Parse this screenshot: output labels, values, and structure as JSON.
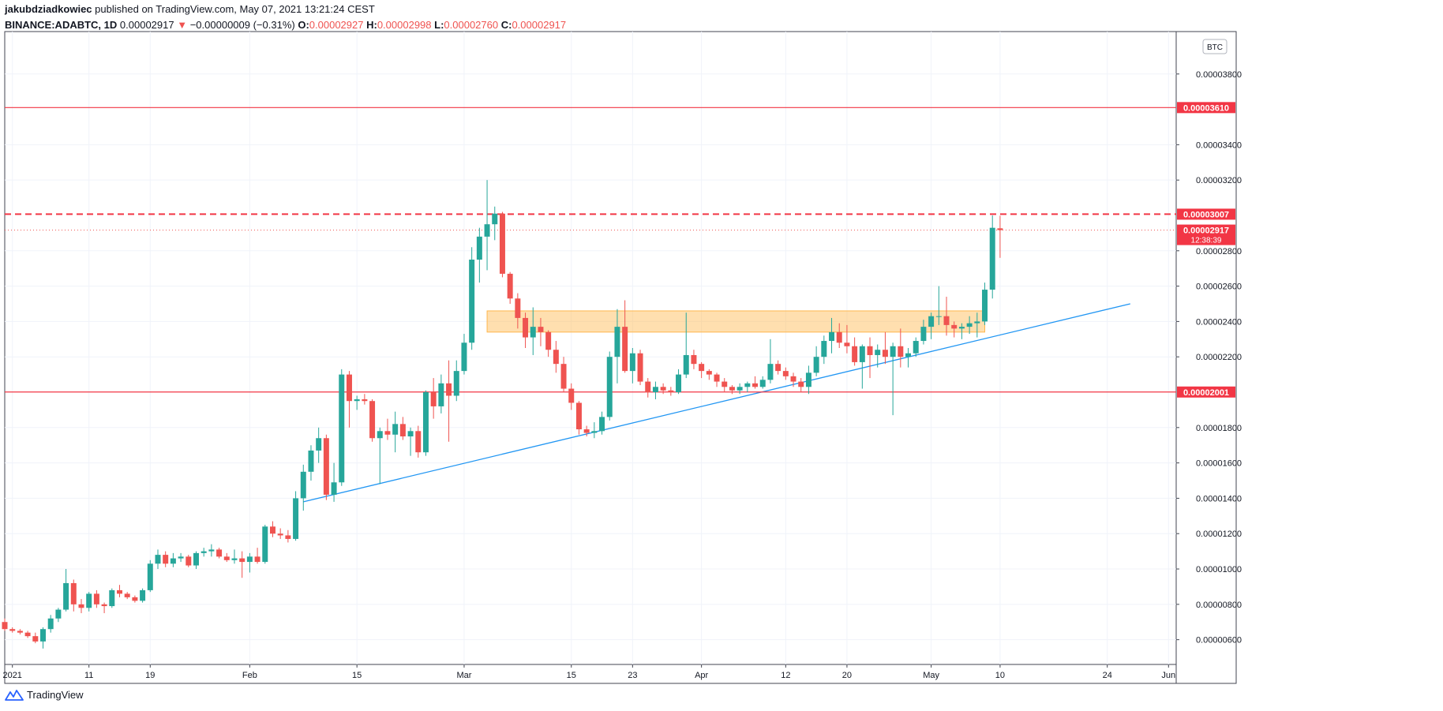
{
  "header": {
    "author": "jakubdziadkowiec",
    "published_text": "published on TradingView.com, May 07, 2021 13:21:24 CEST",
    "symbol": "BINANCE:ADABTC, 1D",
    "last": "0.00002917",
    "arrow": "▼",
    "change": "−0.00000009 (−0.31%)",
    "o_label": "O:",
    "o_value": "0.00002927",
    "h_label": "H:",
    "h_value": "0.00002998",
    "l_label": "L:",
    "l_value": "0.00002760",
    "c_label": "C:",
    "c_value": "0.00002917"
  },
  "footer": {
    "brand": "TradingView"
  },
  "colors": {
    "up": "#26a69a",
    "down": "#ef5350",
    "level": "#f23645",
    "trend": "#2196f3",
    "zone": "#ffb74d"
  },
  "chart_data": {
    "type": "candlestick",
    "currency": "BTC",
    "y_axis_ticks": [
      "0.00000600",
      "0.00000800",
      "0.00001000",
      "0.00001200",
      "0.00001400",
      "0.00001600",
      "0.00001800",
      "0.00002200",
      "0.00002400",
      "0.00002600",
      "0.00002800",
      "0.00003200",
      "0.00003400",
      "0.00003800"
    ],
    "ylim": [
      4.6e-06,
      4.04e-05
    ],
    "x_axis_ticks": [
      {
        "label": "2021",
        "date": "2021-01-01"
      },
      {
        "label": "11",
        "date": "2021-01-11"
      },
      {
        "label": "19",
        "date": "2021-01-19"
      },
      {
        "label": "Feb",
        "date": "2021-02-01"
      },
      {
        "label": "15",
        "date": "2021-02-15"
      },
      {
        "label": "Mar",
        "date": "2021-03-01"
      },
      {
        "label": "15",
        "date": "2021-03-15"
      },
      {
        "label": "23",
        "date": "2021-03-23"
      },
      {
        "label": "Apr",
        "date": "2021-04-01"
      },
      {
        "label": "12",
        "date": "2021-04-12"
      },
      {
        "label": "20",
        "date": "2021-04-20"
      },
      {
        "label": "May",
        "date": "2021-05-01"
      },
      {
        "label": "10",
        "date": "2021-05-10"
      },
      {
        "label": "24",
        "date": "2021-05-24"
      },
      {
        "label": "Jun",
        "date": "2021-06-01"
      }
    ],
    "xlim": [
      "2020-12-31",
      "2021-06-02"
    ],
    "price_levels": [
      {
        "value": 3.61e-05,
        "label": "0.00003610",
        "style": "solid"
      },
      {
        "value": 3.007e-05,
        "label": "0.00003007",
        "style": "dashed"
      },
      {
        "value": 2.001e-05,
        "label": "0.00002001",
        "style": "solid"
      }
    ],
    "last_price": {
      "value": 2.917e-05,
      "label": "0.00002917",
      "countdown": "12:38:39"
    },
    "zone": {
      "from": "2021-03-04",
      "to": "2021-05-08",
      "low": 2.34e-05,
      "high": 2.46e-05
    },
    "trendline": {
      "from": {
        "date": "2021-02-08",
        "value": 1.38e-05
      },
      "to": {
        "date": "2021-05-27",
        "value": 2.5e-05
      }
    },
    "candles": [
      [
        "2020-12-31",
        7e-06,
        7.2e-06,
        6.5e-06,
        6.6e-06
      ],
      [
        "2021-01-01",
        6.6e-06,
        6.7e-06,
        6.4e-06,
        6.5e-06
      ],
      [
        "2021-01-02",
        6.5e-06,
        6.6e-06,
        6.3e-06,
        6.4e-06
      ],
      [
        "2021-01-03",
        6.4e-06,
        6.5e-06,
        6.1e-06,
        6.2e-06
      ],
      [
        "2021-01-04",
        6.2e-06,
        6.4e-06,
        5.8e-06,
        5.9e-06
      ],
      [
        "2021-01-05",
        5.9e-06,
        6.7e-06,
        5.5e-06,
        6.6e-06
      ],
      [
        "2021-01-06",
        6.6e-06,
        7.4e-06,
        6.4e-06,
        7.2e-06
      ],
      [
        "2021-01-07",
        7.2e-06,
        7.8e-06,
        7e-06,
        7.7e-06
      ],
      [
        "2021-01-08",
        7.7e-06,
        1e-05,
        7.6e-06,
        9.2e-06
      ],
      [
        "2021-01-09",
        9.2e-06,
        9.4e-06,
        7.6e-06,
        8e-06
      ],
      [
        "2021-01-10",
        8e-06,
        8.3e-06,
        7.5e-06,
        7.8e-06
      ],
      [
        "2021-01-11",
        7.8e-06,
        8.7e-06,
        7.6e-06,
        8.6e-06
      ],
      [
        "2021-01-12",
        8.6e-06,
        8.8e-06,
        7.8e-06,
        8e-06
      ],
      [
        "2021-01-13",
        8e-06,
        8.1e-06,
        7.5e-06,
        7.9e-06
      ],
      [
        "2021-01-14",
        7.9e-06,
        8.9e-06,
        7.8e-06,
        8.8e-06
      ],
      [
        "2021-01-15",
        8.8e-06,
        9.1e-06,
        8.4e-06,
        8.6e-06
      ],
      [
        "2021-01-16",
        8.6e-06,
        8.7e-06,
        8.3e-06,
        8.4e-06
      ],
      [
        "2021-01-17",
        8.4e-06,
        8.5e-06,
        8.1e-06,
        8.2e-06
      ],
      [
        "2021-01-18",
        8.2e-06,
        8.9e-06,
        8.1e-06,
        8.8e-06
      ],
      [
        "2021-01-19",
        8.8e-06,
        1.05e-05,
        8.7e-06,
        1.03e-05
      ],
      [
        "2021-01-20",
        1.03e-05,
        1.11e-05,
        1e-05,
        1.08e-05
      ],
      [
        "2021-01-21",
        1.08e-05,
        1.1e-05,
        1.01e-05,
        1.03e-05
      ],
      [
        "2021-01-22",
        1.03e-05,
        1.09e-05,
        1.01e-05,
        1.06e-05
      ],
      [
        "2021-01-23",
        1.06e-05,
        1.09e-05,
        1.04e-05,
        1.07e-05
      ],
      [
        "2021-01-24",
        1.07e-05,
        1.08e-05,
        1.01e-05,
        1.02e-05
      ],
      [
        "2021-01-25",
        1.02e-05,
        1.1e-05,
        1e-05,
        1.09e-05
      ],
      [
        "2021-01-26",
        1.09e-05,
        1.12e-05,
        1.07e-05,
        1.1e-05
      ],
      [
        "2021-01-27",
        1.1e-05,
        1.14e-05,
        1.07e-05,
        1.11e-05
      ],
      [
        "2021-01-28",
        1.11e-05,
        1.12e-05,
        1.06e-05,
        1.07e-05
      ],
      [
        "2021-01-29",
        1.07e-05,
        1.09e-05,
        1.04e-05,
        1.05e-05
      ],
      [
        "2021-01-30",
        1.05e-05,
        1.11e-05,
        1.03e-05,
        1.06e-05
      ],
      [
        "2021-01-31",
        1.06e-05,
        1.1e-05,
        9.5e-06,
        1.04e-05
      ],
      [
        "2021-02-01",
        1.04e-05,
        1.09e-05,
        9.8e-06,
        1.07e-05
      ],
      [
        "2021-02-02",
        1.07e-05,
        1.12e-05,
        1.03e-05,
        1.04e-05
      ],
      [
        "2021-02-03",
        1.04e-05,
        1.25e-05,
        1.03e-05,
        1.24e-05
      ],
      [
        "2021-02-04",
        1.24e-05,
        1.27e-05,
        1.18e-05,
        1.2e-05
      ],
      [
        "2021-02-05",
        1.2e-05,
        1.23e-05,
        1.17e-05,
        1.19e-05
      ],
      [
        "2021-02-06",
        1.19e-05,
        1.22e-05,
        1.15e-05,
        1.17e-05
      ],
      [
        "2021-02-07",
        1.17e-05,
        1.44e-05,
        1.16e-05,
        1.4e-05
      ],
      [
        "2021-02-08",
        1.4e-05,
        1.59e-05,
        1.33e-05,
        1.55e-05
      ],
      [
        "2021-02-09",
        1.55e-05,
        1.7e-05,
        1.5e-05,
        1.67e-05
      ],
      [
        "2021-02-10",
        1.67e-05,
        1.8e-05,
        1.6e-05,
        1.74e-05
      ],
      [
        "2021-02-11",
        1.74e-05,
        1.76e-05,
        1.39e-05,
        1.42e-05
      ],
      [
        "2021-02-12",
        1.42e-05,
        1.6e-05,
        1.38e-05,
        1.49e-05
      ],
      [
        "2021-02-13",
        1.49e-05,
        2.13e-05,
        1.47e-05,
        2.1e-05
      ],
      [
        "2021-02-14",
        2.1e-05,
        2.12e-05,
        1.8e-05,
        1.95e-05
      ],
      [
        "2021-02-15",
        1.95e-05,
        1.98e-05,
        1.9e-05,
        1.96e-05
      ],
      [
        "2021-02-16",
        1.96e-05,
        1.99e-05,
        1.93e-05,
        1.95e-05
      ],
      [
        "2021-02-17",
        1.95e-05,
        1.96e-05,
        1.72e-05,
        1.74e-05
      ],
      [
        "2021-02-18",
        1.74e-05,
        1.8e-05,
        1.48e-05,
        1.78e-05
      ],
      [
        "2021-02-19",
        1.78e-05,
        1.85e-05,
        1.73e-05,
        1.76e-05
      ],
      [
        "2021-02-20",
        1.76e-05,
        1.89e-05,
        1.66e-05,
        1.82e-05
      ],
      [
        "2021-02-21",
        1.82e-05,
        1.86e-05,
        1.73e-05,
        1.75e-05
      ],
      [
        "2021-02-22",
        1.75e-05,
        1.8e-05,
        1.64e-05,
        1.78e-05
      ],
      [
        "2021-02-23",
        1.78e-05,
        1.81e-05,
        1.63e-05,
        1.66e-05
      ],
      [
        "2021-02-24",
        1.66e-05,
        2.01e-05,
        1.64e-05,
        2e-05
      ],
      [
        "2021-02-25",
        2e-05,
        2.08e-05,
        1.85e-05,
        1.92e-05
      ],
      [
        "2021-02-26",
        1.92e-05,
        2.1e-05,
        1.88e-05,
        2.05e-05
      ],
      [
        "2021-02-27",
        2.05e-05,
        2.18e-05,
        1.72e-05,
        1.98e-05
      ],
      [
        "2021-02-28",
        1.98e-05,
        2.18e-05,
        1.95e-05,
        2.12e-05
      ],
      [
        "2021-03-01",
        2.12e-05,
        2.33e-05,
        2.1e-05,
        2.28e-05
      ],
      [
        "2021-03-02",
        2.28e-05,
        2.82e-05,
        2.24e-05,
        2.75e-05
      ],
      [
        "2021-03-03",
        2.75e-05,
        2.93e-05,
        2.62e-05,
        2.88e-05
      ],
      [
        "2021-03-04",
        2.88e-05,
        3.2e-05,
        2.69e-05,
        2.95e-05
      ],
      [
        "2021-03-05",
        2.95e-05,
        3.05e-05,
        2.86e-05,
        3.01e-05
      ],
      [
        "2021-03-06",
        3.01e-05,
        3.02e-05,
        2.65e-05,
        2.67e-05
      ],
      [
        "2021-03-07",
        2.67e-05,
        2.68e-05,
        2.5e-05,
        2.53e-05
      ],
      [
        "2021-03-08",
        2.53e-05,
        2.56e-05,
        2.36e-05,
        2.42e-05
      ],
      [
        "2021-03-09",
        2.42e-05,
        2.45e-05,
        2.25e-05,
        2.31e-05
      ],
      [
        "2021-03-10",
        2.31e-05,
        2.48e-05,
        2.21e-05,
        2.37e-05
      ],
      [
        "2021-03-11",
        2.37e-05,
        2.42e-05,
        2.26e-05,
        2.34e-05
      ],
      [
        "2021-03-12",
        2.34e-05,
        2.35e-05,
        2.2e-05,
        2.24e-05
      ],
      [
        "2021-03-13",
        2.24e-05,
        2.29e-05,
        2.11e-05,
        2.16e-05
      ],
      [
        "2021-03-14",
        2.16e-05,
        2.2e-05,
        2e-05,
        2.02e-05
      ],
      [
        "2021-03-15",
        2.02e-05,
        2.05e-05,
        1.9e-05,
        1.94e-05
      ],
      [
        "2021-03-16",
        1.94e-05,
        1.95e-05,
        1.76e-05,
        1.79e-05
      ],
      [
        "2021-03-17",
        1.79e-05,
        1.81e-05,
        1.75e-05,
        1.77e-05
      ],
      [
        "2021-03-18",
        1.77e-05,
        1.83e-05,
        1.74e-05,
        1.78e-05
      ],
      [
        "2021-03-19",
        1.78e-05,
        1.89e-05,
        1.76e-05,
        1.86e-05
      ],
      [
        "2021-03-20",
        1.86e-05,
        2.23e-05,
        1.84e-05,
        2.2e-05
      ],
      [
        "2021-03-21",
        2.2e-05,
        2.47e-05,
        2.05e-05,
        2.37e-05
      ],
      [
        "2021-03-22",
        2.37e-05,
        2.52e-05,
        2.11e-05,
        2.12e-05
      ],
      [
        "2021-03-23",
        2.12e-05,
        2.25e-05,
        2.05e-05,
        2.22e-05
      ],
      [
        "2021-03-24",
        2.22e-05,
        2.24e-05,
        2.04e-05,
        2.06e-05
      ],
      [
        "2021-03-25",
        2.06e-05,
        2.08e-05,
        1.97e-05,
        2e-05
      ],
      [
        "2021-03-26",
        2e-05,
        2.06e-05,
        1.96e-05,
        2.03e-05
      ],
      [
        "2021-03-27",
        2.03e-05,
        2.05e-05,
        1.99e-05,
        2.01e-05
      ],
      [
        "2021-03-28",
        2.01e-05,
        2.03e-05,
        1.98e-05,
        2e-05
      ],
      [
        "2021-03-29",
        2e-05,
        2.13e-05,
        1.99e-05,
        2.1e-05
      ],
      [
        "2021-03-30",
        2.1e-05,
        2.45e-05,
        2.08e-05,
        2.21e-05
      ],
      [
        "2021-03-31",
        2.21e-05,
        2.24e-05,
        2.13e-05,
        2.16e-05
      ],
      [
        "2021-04-01",
        2.16e-05,
        2.17e-05,
        2.08e-05,
        2.12e-05
      ],
      [
        "2021-04-02",
        2.12e-05,
        2.13e-05,
        2.07e-05,
        2.1e-05
      ],
      [
        "2021-04-03",
        2.1e-05,
        2.11e-05,
        2.03e-05,
        2.06e-05
      ],
      [
        "2021-04-04",
        2.06e-05,
        2.08e-05,
        2e-05,
        2.03e-05
      ],
      [
        "2021-04-05",
        2.03e-05,
        2.04e-05,
        1.99e-05,
        2.01e-05
      ],
      [
        "2021-04-06",
        2.01e-05,
        2.05e-05,
        1.99e-05,
        2.03e-05
      ],
      [
        "2021-04-07",
        2.03e-05,
        2.06e-05,
        2e-05,
        2.05e-05
      ],
      [
        "2021-04-08",
        2.05e-05,
        2.09e-05,
        2.02e-05,
        2.03e-05
      ],
      [
        "2021-04-09",
        2.03e-05,
        2.09e-05,
        2.02e-05,
        2.07e-05
      ],
      [
        "2021-04-10",
        2.07e-05,
        2.3e-05,
        2.05e-05,
        2.16e-05
      ],
      [
        "2021-04-11",
        2.16e-05,
        2.18e-05,
        2.1e-05,
        2.12e-05
      ],
      [
        "2021-04-12",
        2.12e-05,
        2.14e-05,
        2.07e-05,
        2.09e-05
      ],
      [
        "2021-04-13",
        2.09e-05,
        2.11e-05,
        2.03e-05,
        2.06e-05
      ],
      [
        "2021-04-14",
        2.06e-05,
        2.08e-05,
        2e-05,
        2.03e-05
      ],
      [
        "2021-04-15",
        2.03e-05,
        2.15e-05,
        1.99e-05,
        2.11e-05
      ],
      [
        "2021-04-16",
        2.11e-05,
        2.26e-05,
        2.09e-05,
        2.2e-05
      ],
      [
        "2021-04-17",
        2.2e-05,
        2.32e-05,
        2.16e-05,
        2.29e-05
      ],
      [
        "2021-04-18",
        2.29e-05,
        2.42e-05,
        2.22e-05,
        2.34e-05
      ],
      [
        "2021-04-19",
        2.34e-05,
        2.39e-05,
        2.25e-05,
        2.28e-05
      ],
      [
        "2021-04-20",
        2.28e-05,
        2.38e-05,
        2.22e-05,
        2.26e-05
      ],
      [
        "2021-04-21",
        2.26e-05,
        2.31e-05,
        2.15e-05,
        2.17e-05
      ],
      [
        "2021-04-22",
        2.17e-05,
        2.27e-05,
        2.02e-05,
        2.26e-05
      ],
      [
        "2021-04-23",
        2.26e-05,
        2.31e-05,
        2.08e-05,
        2.21e-05
      ],
      [
        "2021-04-24",
        2.21e-05,
        2.27e-05,
        2.14e-05,
        2.24e-05
      ],
      [
        "2021-04-25",
        2.24e-05,
        2.34e-05,
        2.16e-05,
        2.2e-05
      ],
      [
        "2021-04-26",
        2.2e-05,
        2.28e-05,
        1.87e-05,
        2.26e-05
      ],
      [
        "2021-04-27",
        2.26e-05,
        2.36e-05,
        2.14e-05,
        2.2e-05
      ],
      [
        "2021-04-28",
        2.2e-05,
        2.25e-05,
        2.14e-05,
        2.22e-05
      ],
      [
        "2021-04-29",
        2.22e-05,
        2.31e-05,
        2.2e-05,
        2.29e-05
      ],
      [
        "2021-04-30",
        2.29e-05,
        2.41e-05,
        2.27e-05,
        2.37e-05
      ],
      [
        "2021-05-01",
        2.37e-05,
        2.45e-05,
        2.3e-05,
        2.43e-05
      ],
      [
        "2021-05-02",
        2.43e-05,
        2.6e-05,
        2.38e-05,
        2.43e-05
      ],
      [
        "2021-05-03",
        2.43e-05,
        2.54e-05,
        2.32e-05,
        2.38e-05
      ],
      [
        "2021-05-04",
        2.38e-05,
        2.4e-05,
        2.31e-05,
        2.36e-05
      ],
      [
        "2021-05-05",
        2.36e-05,
        2.39e-05,
        2.3e-05,
        2.37e-05
      ],
      [
        "2021-05-06",
        2.37e-05,
        2.43e-05,
        2.33e-05,
        2.39e-05
      ],
      [
        "2021-05-07",
        2.39e-05,
        2.45e-05,
        2.31e-05,
        2.4e-05
      ],
      [
        "2021-05-08",
        2.4e-05,
        2.62e-05,
        2.38e-05,
        2.58e-05
      ],
      [
        "2021-05-09",
        2.58e-05,
        3e-05,
        2.53e-05,
        2.93e-05
      ],
      [
        "2021-05-10",
        2.927e-05,
        2.998e-05,
        2.76e-05,
        2.917e-05
      ]
    ]
  }
}
